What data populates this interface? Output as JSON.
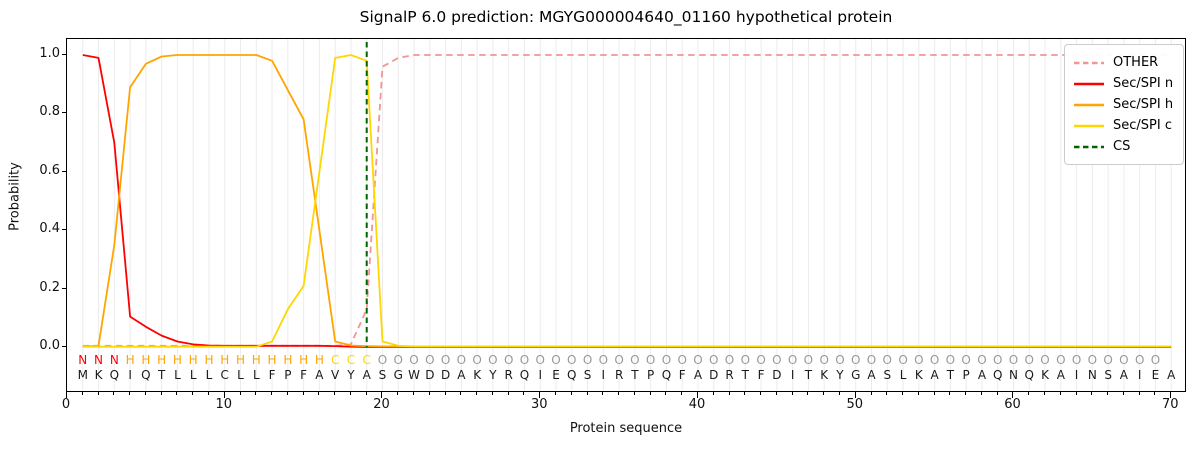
{
  "figure": {
    "title": "SignalP 6.0 prediction: MGYG000004640_01160 hypothetical protein",
    "xlabel": "Protein sequence",
    "ylabel": "Probability"
  },
  "legend": {
    "items": [
      {
        "label": "OTHER",
        "color": "#f19595",
        "dash": true
      },
      {
        "label": "Sec/SPI n",
        "color": "#ff0000",
        "dash": false
      },
      {
        "label": "Sec/SPI h",
        "color": "#ffa500",
        "dash": false
      },
      {
        "label": "Sec/SPI c",
        "color": "#ffd700",
        "dash": false
      },
      {
        "label": "CS",
        "color": "#006400",
        "dash": true
      }
    ]
  },
  "axes": {
    "x_tick_values": [
      0,
      10,
      20,
      30,
      40,
      50,
      60,
      70
    ],
    "x_tick_labels": [
      "0",
      "10",
      "20",
      "30",
      "40",
      "50",
      "60",
      "70"
    ],
    "y_tick_values": [
      0.0,
      0.2,
      0.4,
      0.6,
      0.8,
      1.0
    ],
    "y_tick_labels": [
      "0.0",
      "0.2",
      "0.4",
      "0.6",
      "0.8",
      "1.0"
    ],
    "grid_color": "#ececec",
    "spine_color": "#000000"
  },
  "sequence": {
    "residues": "MKQIQTLLLCLLFPFAVYASGWDDAKYRQIEQSIRTPQFADRTFDITKYGASLKATPAQNQKAINSAIEA",
    "region_labels": "NNNHHHHHHHHHHHHHCCCOOOOOOOOOOOOOOOOOOOOOOOOOOOOOOOOOOOOOOOOOOOOOOOOOO",
    "label_colors": {
      "N": "#ff0000",
      "H": "#ffa500",
      "C": "#ffd700",
      "O": "#999999"
    },
    "residue_color": "#1a1a1a"
  },
  "chart_data": {
    "type": "line",
    "title": "SignalP 6.0 prediction: MGYG000004640_01160 hypothetical protein",
    "xlabel": "Protein sequence",
    "ylabel": "Probability",
    "xlim": [
      0,
      71
    ],
    "ylim": [
      -0.155,
      1.055
    ],
    "grid": "vertical-minor",
    "legend_position": "upper-right",
    "x": "residue positions 1-70",
    "cs_position": 19,
    "series": [
      {
        "name": "OTHER",
        "color": "#f19595",
        "style": "dashed",
        "values": [
          0.005,
          0.005,
          0.005,
          0.005,
          0.005,
          0.005,
          0.005,
          0.005,
          0.005,
          0.005,
          0.005,
          0.005,
          0.005,
          0.005,
          0.005,
          0.005,
          0.005,
          0.01,
          0.13,
          0.96,
          0.99,
          1,
          1,
          1,
          1,
          1,
          1,
          1,
          1,
          1,
          1,
          1,
          1,
          1,
          1,
          1,
          1,
          1,
          1,
          1,
          1,
          1,
          1,
          1,
          1,
          1,
          1,
          1,
          1,
          1,
          1,
          1,
          1,
          1,
          1,
          1,
          1,
          1,
          1,
          1,
          1,
          1,
          1,
          1,
          1,
          1,
          1,
          1,
          1,
          1
        ]
      },
      {
        "name": "Sec/SPI n",
        "color": "#ff0000",
        "style": "solid",
        "values": [
          1,
          0.99,
          0.7,
          0.105,
          0.07,
          0.04,
          0.02,
          0.01,
          0.006,
          0.005,
          0.005,
          0.005,
          0.005,
          0.005,
          0.005,
          0.005,
          0.004,
          0.002,
          0.001,
          0.001,
          0.001,
          0.001,
          0.001,
          0.001,
          0.001,
          0.001,
          0.001,
          0.001,
          0.001,
          0.001,
          0.001,
          0.001,
          0.001,
          0.001,
          0.001,
          0.001,
          0.001,
          0.001,
          0.001,
          0.001,
          0.001,
          0.001,
          0.001,
          0.001,
          0.001,
          0.001,
          0.001,
          0.001,
          0.001,
          0.001,
          0.001,
          0.001,
          0.001,
          0.001,
          0.001,
          0.001,
          0.001,
          0.001,
          0.001,
          0.001,
          0.001,
          0.001,
          0.001,
          0.001,
          0.001,
          0.001,
          0.001,
          0.001,
          0.001,
          0.001
        ]
      },
      {
        "name": "Sec/SPI h",
        "color": "#ffa500",
        "style": "solid",
        "values": [
          0.002,
          0.005,
          0.35,
          0.89,
          0.97,
          0.995,
          1,
          1,
          1,
          1,
          1,
          1,
          0.98,
          0.88,
          0.78,
          0.4,
          0.02,
          0.006,
          0.004,
          0.003,
          0.003,
          0.003,
          0.003,
          0.003,
          0.003,
          0.003,
          0.003,
          0.003,
          0.003,
          0.003,
          0.003,
          0.003,
          0.003,
          0.003,
          0.003,
          0.003,
          0.003,
          0.003,
          0.003,
          0.003,
          0.003,
          0.003,
          0.003,
          0.003,
          0.003,
          0.003,
          0.003,
          0.003,
          0.003,
          0.003,
          0.003,
          0.003,
          0.003,
          0.003,
          0.003,
          0.003,
          0.003,
          0.003,
          0.003,
          0.003,
          0.003,
          0.003,
          0.003,
          0.003,
          0.003,
          0.003,
          0.003,
          0.003,
          0.003,
          0.003
        ]
      },
      {
        "name": "Sec/SPI c",
        "color": "#ffd700",
        "style": "solid",
        "values": [
          0.002,
          0.002,
          0.002,
          0.002,
          0.002,
          0.002,
          0.002,
          0.002,
          0.002,
          0.002,
          0.002,
          0.002,
          0.02,
          0.13,
          0.21,
          0.6,
          0.99,
          1,
          0.98,
          0.02,
          0.005,
          0.003,
          0.003,
          0.003,
          0.003,
          0.003,
          0.003,
          0.003,
          0.003,
          0.003,
          0.003,
          0.003,
          0.003,
          0.003,
          0.003,
          0.003,
          0.003,
          0.003,
          0.003,
          0.003,
          0.003,
          0.003,
          0.003,
          0.003,
          0.003,
          0.003,
          0.003,
          0.003,
          0.003,
          0.003,
          0.003,
          0.003,
          0.003,
          0.003,
          0.003,
          0.003,
          0.003,
          0.003,
          0.003,
          0.003,
          0.003,
          0.003,
          0.003,
          0.003,
          0.003,
          0.003,
          0.003,
          0.003,
          0.003,
          0.003
        ]
      }
    ]
  }
}
